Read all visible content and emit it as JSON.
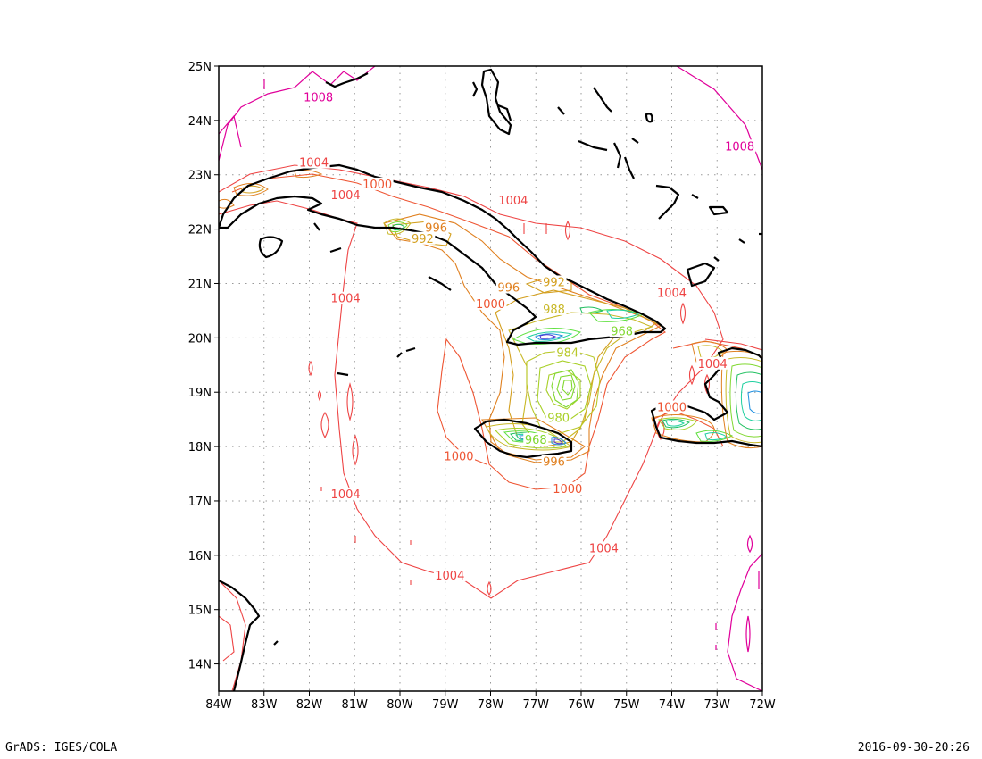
{
  "footer": {
    "left": "GrADS: IGES/COLA",
    "right": "2016-09-30-20:26"
  },
  "map": {
    "lon_range": [
      -84,
      -72
    ],
    "lat_range": [
      13.5,
      25
    ],
    "x_ticks": [
      "84W",
      "83W",
      "82W",
      "81W",
      "80W",
      "79W",
      "78W",
      "77W",
      "76W",
      "75W",
      "74W",
      "73W",
      "72W"
    ],
    "y_ticks": [
      "25N",
      "24N",
      "23N",
      "22N",
      "21N",
      "20N",
      "19N",
      "18N",
      "17N",
      "16N",
      "15N",
      "14N"
    ],
    "contour_labels": [
      {
        "text": "1008",
        "lon": -81.8,
        "lat": 24.4,
        "color": "#e0009a"
      },
      {
        "text": "1008",
        "lon": -72.5,
        "lat": 23.5,
        "color": "#e0009a"
      },
      {
        "text": "1004",
        "lon": -81.9,
        "lat": 23.2,
        "color": "#ee4444"
      },
      {
        "text": "1004",
        "lon": -81.2,
        "lat": 22.6,
        "color": "#ee4444"
      },
      {
        "text": "1000",
        "lon": -80.5,
        "lat": 22.8,
        "color": "#ee5533"
      },
      {
        "text": "1004",
        "lon": -77.5,
        "lat": 22.5,
        "color": "#ee4444"
      },
      {
        "text": "996",
        "lon": -79.2,
        "lat": 22.0,
        "color": "#e08020"
      },
      {
        "text": "992",
        "lon": -79.5,
        "lat": 21.8,
        "color": "#d4a020"
      },
      {
        "text": "992",
        "lon": -76.6,
        "lat": 21.0,
        "color": "#d4a020"
      },
      {
        "text": "996",
        "lon": -77.6,
        "lat": 20.9,
        "color": "#e08020"
      },
      {
        "text": "1004",
        "lon": -81.2,
        "lat": 20.7,
        "color": "#ee4444"
      },
      {
        "text": "1000",
        "lon": -78.0,
        "lat": 20.6,
        "color": "#ee5533"
      },
      {
        "text": "988",
        "lon": -76.6,
        "lat": 20.5,
        "color": "#c8b828"
      },
      {
        "text": "1004",
        "lon": -74.0,
        "lat": 20.8,
        "color": "#ee4444"
      },
      {
        "text": "968",
        "lon": -75.1,
        "lat": 20.1,
        "color": "#80d830"
      },
      {
        "text": "984",
        "lon": -76.3,
        "lat": 19.7,
        "color": "#b8c828"
      },
      {
        "text": "1004",
        "lon": -73.1,
        "lat": 19.5,
        "color": "#ee4444"
      },
      {
        "text": "1000",
        "lon": -74.0,
        "lat": 18.7,
        "color": "#ee5533"
      },
      {
        "text": "980",
        "lon": -76.5,
        "lat": 18.5,
        "color": "#a8d028"
      },
      {
        "text": "968",
        "lon": -77.0,
        "lat": 18.1,
        "color": "#80d830"
      },
      {
        "text": "1000",
        "lon": -78.7,
        "lat": 17.8,
        "color": "#ee5533"
      },
      {
        "text": "996",
        "lon": -76.6,
        "lat": 17.7,
        "color": "#e08020"
      },
      {
        "text": "1000",
        "lon": -76.3,
        "lat": 17.2,
        "color": "#ee5533"
      },
      {
        "text": "1004",
        "lon": -81.2,
        "lat": 17.1,
        "color": "#ee4444"
      },
      {
        "text": "1004",
        "lon": -75.5,
        "lat": 16.1,
        "color": "#ee4444"
      },
      {
        "text": "1004",
        "lon": -78.9,
        "lat": 15.6,
        "color": "#ee4444"
      }
    ]
  }
}
